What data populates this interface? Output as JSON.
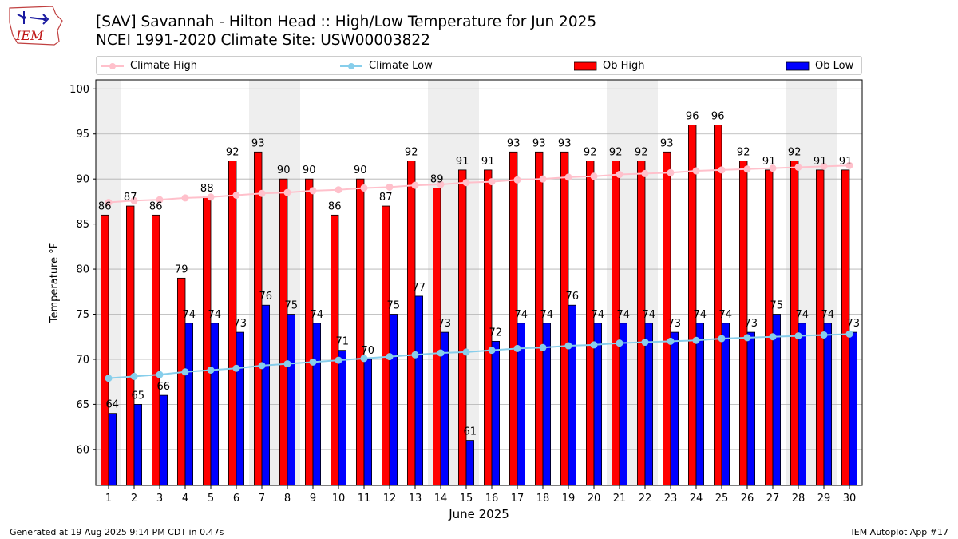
{
  "header": {
    "title_line1": "[SAV] Savannah - Hilton Head :: High/Low Temperature for Jun 2025",
    "title_line2": "NCEI 1991-2020 Climate Site: USW00003822",
    "logo_text": "IEM"
  },
  "footer": {
    "left": "Generated at 19 Aug 2025 9:14 PM CDT in 0.47s",
    "right": "IEM Autoplot App #17"
  },
  "colors": {
    "ob_high": "#ff0000",
    "ob_low": "#0000ff",
    "climate_high": "#ffc0cb",
    "climate_low": "#87ceeb",
    "weekend_band": "#eeeeee",
    "grid": "#b0b0b0"
  },
  "chart_data": {
    "type": "bar",
    "xlabel": "June 2025",
    "ylabel": "Temperature °F",
    "ylim": [
      56,
      101
    ],
    "yticks": [
      60,
      65,
      70,
      75,
      80,
      85,
      90,
      95,
      100
    ],
    "grid": "horizontal",
    "legend_placement": "top",
    "categories": [
      "1",
      "2",
      "3",
      "4",
      "5",
      "6",
      "7",
      "8",
      "9",
      "10",
      "11",
      "12",
      "13",
      "14",
      "15",
      "16",
      "17",
      "18",
      "19",
      "20",
      "21",
      "22",
      "23",
      "24",
      "25",
      "26",
      "27",
      "28",
      "29",
      "30"
    ],
    "weekend_days": [
      1,
      7,
      8,
      14,
      15,
      21,
      22,
      28,
      29
    ],
    "series": [
      {
        "name": "Climate High",
        "kind": "line",
        "values": [
          87.4,
          87.6,
          87.7,
          87.9,
          88.0,
          88.2,
          88.4,
          88.5,
          88.7,
          88.8,
          89.0,
          89.1,
          89.3,
          89.4,
          89.6,
          89.7,
          89.9,
          90.0,
          90.2,
          90.3,
          90.5,
          90.6,
          90.7,
          90.9,
          91.0,
          91.1,
          91.2,
          91.3,
          91.4,
          91.5
        ]
      },
      {
        "name": "Climate Low",
        "kind": "line",
        "values": [
          67.9,
          68.1,
          68.3,
          68.6,
          68.8,
          69.0,
          69.3,
          69.5,
          69.7,
          69.9,
          70.1,
          70.3,
          70.5,
          70.7,
          70.8,
          71.0,
          71.2,
          71.3,
          71.5,
          71.6,
          71.8,
          71.9,
          72.0,
          72.1,
          72.3,
          72.4,
          72.5,
          72.6,
          72.7,
          72.8
        ]
      },
      {
        "name": "Ob High",
        "kind": "bar",
        "values": [
          86,
          87,
          86,
          79,
          88,
          92,
          93,
          90,
          90,
          86,
          90,
          87,
          92,
          89,
          91,
          91,
          93,
          93,
          93,
          92,
          92,
          92,
          93,
          96,
          96,
          92,
          91,
          92,
          91,
          91
        ]
      },
      {
        "name": "Ob Low",
        "kind": "bar",
        "values": [
          64,
          65,
          66,
          74,
          74,
          73,
          76,
          75,
          74,
          71,
          70,
          75,
          77,
          73,
          61,
          72,
          74,
          74,
          76,
          74,
          74,
          74,
          73,
          74,
          74,
          73,
          75,
          74,
          74,
          73
        ]
      }
    ]
  }
}
